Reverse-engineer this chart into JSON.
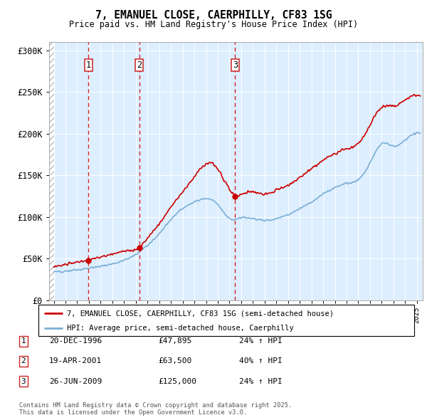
{
  "title": "7, EMANUEL CLOSE, CAERPHILLY, CF83 1SG",
  "subtitle": "Price paid vs. HM Land Registry's House Price Index (HPI)",
  "legend_line1": "7, EMANUEL CLOSE, CAERPHILLY, CF83 1SG (semi-detached house)",
  "legend_line2": "HPI: Average price, semi-detached house, Caerphilly",
  "transactions": [
    {
      "num": 1,
      "date": "20-DEC-1996",
      "price": 47895,
      "year": 1996.97,
      "hpi_pct": "24% ↑ HPI"
    },
    {
      "num": 2,
      "date": "19-APR-2001",
      "price": 63500,
      "year": 2001.3,
      "hpi_pct": "40% ↑ HPI"
    },
    {
      "num": 3,
      "date": "26-JUN-2009",
      "price": 125000,
      "year": 2009.48,
      "hpi_pct": "24% ↑ HPI"
    }
  ],
  "footnote1": "Contains HM Land Registry data © Crown copyright and database right 2025.",
  "footnote2": "This data is licensed under the Open Government Licence v3.0.",
  "ylim": [
    0,
    310000
  ],
  "yticks": [
    0,
    50000,
    100000,
    150000,
    200000,
    250000,
    300000
  ],
  "ytick_labels": [
    "£0",
    "£50K",
    "£100K",
    "£150K",
    "£200K",
    "£250K",
    "£300K"
  ],
  "hpi_color": "#7bafd4",
  "price_color": "#cc0000",
  "bg_color": "#ddeeff",
  "vline_color": "#cc0000",
  "marker_color": "#cc0000",
  "grid_color": "#ffffff",
  "xstart": 1993.6,
  "xend": 2025.5
}
